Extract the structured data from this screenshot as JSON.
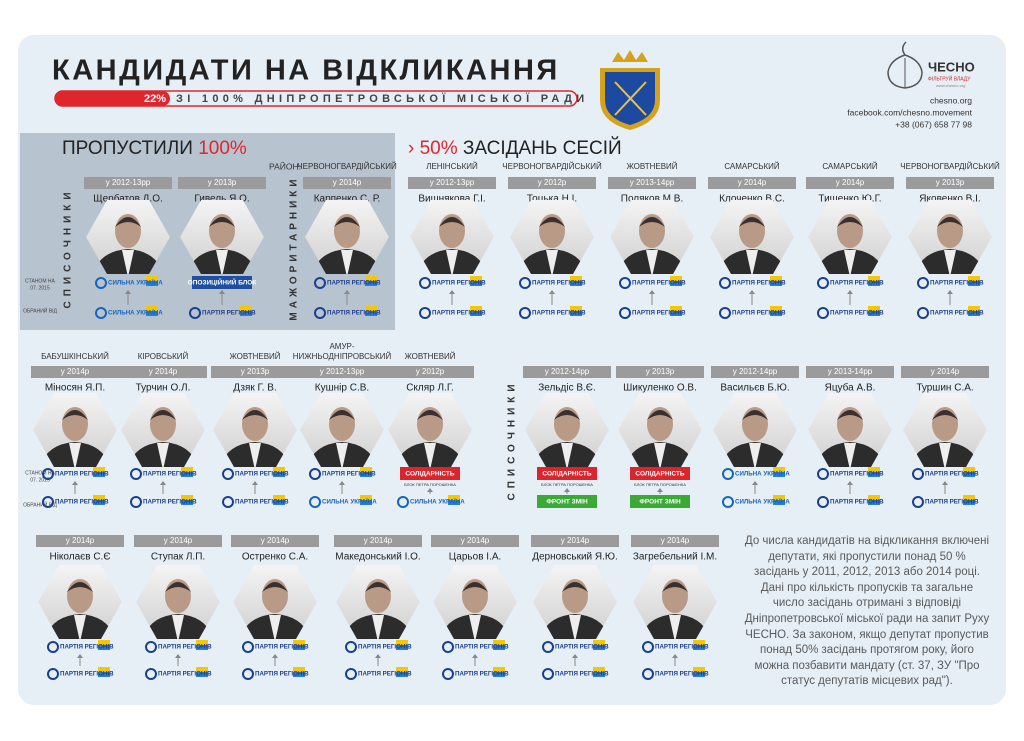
{
  "header": {
    "title": "КАНДИДАТИ НА ВІДКЛИКАННЯ",
    "percent": "22%",
    "subtitle": "ЗІ 100% ДНІПРОПЕТРОВСЬКОЇ МІСЬКОЇ РАДИ"
  },
  "logo": {
    "name": "ЧЕСНО",
    "tagline": "ФІЛЬТРУЙ ВЛАДУ",
    "url": "www.chesno.org"
  },
  "contacts": [
    "chesno.org",
    "facebook.com/chesno.movement",
    "+38 (067) 658 77 98"
  ],
  "side": {
    "asof_1": "СТАНОМ НА",
    "asof_2": "07. 2015",
    "elected": "ОБРАНИЙ ВІД"
  },
  "section1": {
    "title": "ПРОПУСТИЛИ",
    "title_percent": "100%",
    "list_label": "СПИСОЧНИКИ",
    "major_label": "МАЖОРИТАРНИКИ",
    "district_label": "РАЙОН:",
    "people": [
      {
        "years": "у 2012-13рр",
        "name": "Щербатов Д.О.",
        "now": {
          "name": "СИЛЬНА УКРАЇНА",
          "color": "#1565c0"
        },
        "elected": {
          "name": "СИЛЬНА УКРАЇНА",
          "color": "#1565c0"
        }
      },
      {
        "years": "у 2013р",
        "name": "Гивель Я.О.",
        "now": {
          "name": "ОПОЗИЦІЙНИЙ БЛОК",
          "fill": "#1e4fa3"
        },
        "elected": {
          "name": "ПАРТІЯ РЕГІОНІВ",
          "color": "#1b3f8f"
        }
      },
      {
        "district": "ЧЕРВОНОГВАРДІЙСЬКИЙ",
        "years": "у 2014р",
        "name": "Карпенко С. Р.",
        "now": {
          "name": "ПАРТІЯ РЕГІОНІВ",
          "color": "#1b3f8f"
        },
        "elected": {
          "name": "ПАРТІЯ РЕГІОНІВ",
          "color": "#1b3f8f"
        }
      }
    ]
  },
  "section2": {
    "title_percent": "› 50%",
    "title": "ЗАСІДАНЬ СЕСІЙ",
    "list_label": "СПИСОЧНИКИ",
    "row1": [
      {
        "district": "ЛЕНІНСЬКИЙ",
        "years": "у 2012-13рр",
        "name": "Вишнякова Г.І.",
        "now": {
          "name": "ПАРТІЯ РЕГІОНІВ",
          "color": "#1b3f8f"
        },
        "elected": {
          "name": "ПАРТІЯ РЕГІОНІВ",
          "color": "#1b3f8f"
        }
      },
      {
        "district": "ЧЕРВОНОГВАРДІЙСЬКИЙ",
        "years": "у 2012р",
        "name": "Тоцька Н.І.",
        "now": {
          "name": "ПАРТІЯ РЕГІОНІВ",
          "color": "#1b3f8f"
        },
        "elected": {
          "name": "ПАРТІЯ РЕГІОНІВ",
          "color": "#1b3f8f"
        }
      },
      {
        "district": "ЖОВТНЕВИЙ",
        "years": "у 2013-14рр",
        "name": "Поляков М.В.",
        "now": {
          "name": "ПАРТІЯ РЕГІОНІВ",
          "color": "#1b3f8f"
        },
        "elected": {
          "name": "ПАРТІЯ РЕГІОНІВ",
          "color": "#1b3f8f"
        }
      },
      {
        "district": "САМАРСЬКИЙ",
        "years": "у 2014р",
        "name": "Клоченко В.С.",
        "now": {
          "name": "ПАРТІЯ РЕГІОНІВ",
          "color": "#1b3f8f"
        },
        "elected": {
          "name": "ПАРТІЯ РЕГІОНІВ",
          "color": "#1b3f8f"
        }
      },
      {
        "district": "САМАРСЬКИЙ",
        "years": "у 2014р",
        "name": "Тищенко Ю.Г.",
        "now": {
          "name": "ПАРТІЯ РЕГІОНІВ",
          "color": "#1b3f8f"
        },
        "elected": {
          "name": "ПАРТІЯ РЕГІОНІВ",
          "color": "#1b3f8f"
        }
      },
      {
        "district": "ЧЕРВОНОГВАРДІЙСЬКИЙ",
        "years": "у 2013р",
        "name": "Яковенко В.І.",
        "now": {
          "name": "ПАРТІЯ РЕГІОНІВ",
          "color": "#1b3f8f"
        },
        "elected": {
          "name": "ПАРТІЯ РЕГІОНІВ",
          "color": "#1b3f8f"
        }
      }
    ],
    "row2": [
      {
        "district": "БАБУШКІНСЬКИЙ",
        "years": "у 2014р",
        "name": "Міносян Я.П.",
        "now": {
          "name": "ПАРТІЯ РЕГІОНІВ",
          "color": "#1b3f8f"
        },
        "elected": {
          "name": "ПАРТІЯ РЕГІОНІВ",
          "color": "#1b3f8f"
        }
      },
      {
        "district": "КІРОВСЬКИЙ",
        "years": "у 2014р",
        "name": "Турчин О.Л.",
        "now": {
          "name": "ПАРТІЯ РЕГІОНІВ",
          "color": "#1b3f8f"
        },
        "elected": {
          "name": "ПАРТІЯ РЕГІОНІВ",
          "color": "#1b3f8f"
        }
      },
      {
        "district": "ЖОВТНЕВИЙ",
        "years": "у 2013р",
        "name": "Дзяк Г. В.",
        "now": {
          "name": "ПАРТІЯ РЕГІОНІВ",
          "color": "#1b3f8f"
        },
        "elected": {
          "name": "ПАРТІЯ РЕГІОНІВ",
          "color": "#1b3f8f"
        }
      },
      {
        "district": [
          "АМУР-",
          "НИЖНЬОДНІПРОВСЬКИЙ"
        ],
        "years": "у 2012-13рр",
        "name": "Кушнір С.В.",
        "now": {
          "name": "ПАРТІЯ РЕГІОНІВ",
          "color": "#1b3f8f"
        },
        "elected": {
          "name": "СИЛЬНА УКРАЇНА",
          "color": "#1565c0"
        }
      },
      {
        "district": "ЖОВТНЕВИЙ",
        "years": "у 2012р",
        "name": "Скляр Л.Г.",
        "now": {
          "name": "СОЛІДАРНІСТЬ",
          "sub": "БЛОК ПЕТРА ПОРОШЕНКА",
          "fill": "#d9252b"
        },
        "elected": {
          "name": "СИЛЬНА УКРАЇНА",
          "color": "#1565c0"
        }
      },
      {
        "years": "у 2012-14рр",
        "name": "Зельдіс В.Є.",
        "now": {
          "name": "СОЛІДАРНІСТЬ",
          "sub": "БЛОК ПЕТРА ПОРОШЕНКА",
          "fill": "#d9252b"
        },
        "elected": {
          "name": "ФРОНТ ЗМІН",
          "fill": "#3aa935"
        }
      },
      {
        "years": "у 2013р",
        "name": "Шикуленко О.В.",
        "now": {
          "name": "СОЛІДАРНІСТЬ",
          "sub": "БЛОК ПЕТРА ПОРОШЕНКА",
          "fill": "#d9252b"
        },
        "elected": {
          "name": "ФРОНТ ЗМІН",
          "fill": "#3aa935"
        }
      },
      {
        "years": "у 2012-14рр",
        "name": "Васильєв Б.Ю.",
        "now": {
          "name": "СИЛЬНА УКРАЇНА",
          "color": "#1565c0"
        },
        "elected": {
          "name": "СИЛЬНА УКРАЇНА",
          "color": "#1565c0"
        }
      },
      {
        "years": "у 2013-14рр",
        "name": "Яцуба А.В.",
        "now": {
          "name": "ПАРТІЯ РЕГІОНІВ",
          "color": "#1b3f8f"
        },
        "elected": {
          "name": "ПАРТІЯ РЕГІОНІВ",
          "color": "#1b3f8f"
        }
      },
      {
        "years": "у 2014р",
        "name": "Туршин С.А.",
        "now": {
          "name": "ПАРТІЯ РЕГІОНІВ",
          "color": "#1b3f8f"
        },
        "elected": {
          "name": "ПАРТІЯ РЕГІОНІВ",
          "color": "#1b3f8f"
        }
      }
    ],
    "row3": [
      {
        "years": "у 2014р",
        "name": "Ніколаєв С.Є",
        "now": {
          "name": "ПАРТІЯ РЕГІОНІВ",
          "color": "#1b3f8f"
        },
        "elected": {
          "name": "ПАРТІЯ РЕГІОНІВ",
          "color": "#1b3f8f"
        }
      },
      {
        "years": "у 2014р",
        "name": "Ступак Л.П.",
        "now": {
          "name": "ПАРТІЯ РЕГІОНІВ",
          "color": "#1b3f8f"
        },
        "elected": {
          "name": "ПАРТІЯ РЕГІОНІВ",
          "color": "#1b3f8f"
        }
      },
      {
        "years": "у 2014р",
        "name": "Остренко С.А.",
        "now": {
          "name": "ПАРТІЯ РЕГІОНІВ",
          "color": "#1b3f8f"
        },
        "elected": {
          "name": "ПАРТІЯ РЕГІОНІВ",
          "color": "#1b3f8f"
        }
      },
      {
        "years": "у 2014р",
        "name": "Македонський І.О.",
        "now": {
          "name": "ПАРТІЯ РЕГІОНІВ",
          "color": "#1b3f8f"
        },
        "elected": {
          "name": "ПАРТІЯ РЕГІОНІВ",
          "color": "#1b3f8f"
        }
      },
      {
        "years": "у 2014р",
        "name": "Царьов І.А.",
        "now": {
          "name": "ПАРТІЯ РЕГІОНІВ",
          "color": "#1b3f8f"
        },
        "elected": {
          "name": "ПАРТІЯ РЕГІОНІВ",
          "color": "#1b3f8f"
        }
      },
      {
        "years": "у 2014р",
        "name": "Дерновський Я.Ю.",
        "now": {
          "name": "ПАРТІЯ РЕГІОНІВ",
          "color": "#1b3f8f"
        },
        "elected": {
          "name": "ПАРТІЯ РЕГІОНІВ",
          "color": "#1b3f8f"
        }
      },
      {
        "years": "у 2014р",
        "name": "Загребельний І.М.",
        "now": {
          "name": "ПАРТІЯ РЕГІОНІВ",
          "color": "#1b3f8f"
        },
        "elected": {
          "name": "ПАРТІЯ РЕГІОНІВ",
          "color": "#1b3f8f"
        }
      }
    ]
  },
  "note": "До числа кандидатів на відкликання включені депутати, які пропустили понад 50 % засідань у 2011, 2012, 2013 або 2014 році. Дані про кількість пропусків та загальне число засідань отримані з відповіді Дніпропетровської міської ради на запит Руху ЧЕСНО. За законом, якщо депутат пропустив понад 50% засідань протягом року, його можна позбавити мандату (ст. 37, ЗУ \"Про статус депутатів місцевих рад\")."
}
